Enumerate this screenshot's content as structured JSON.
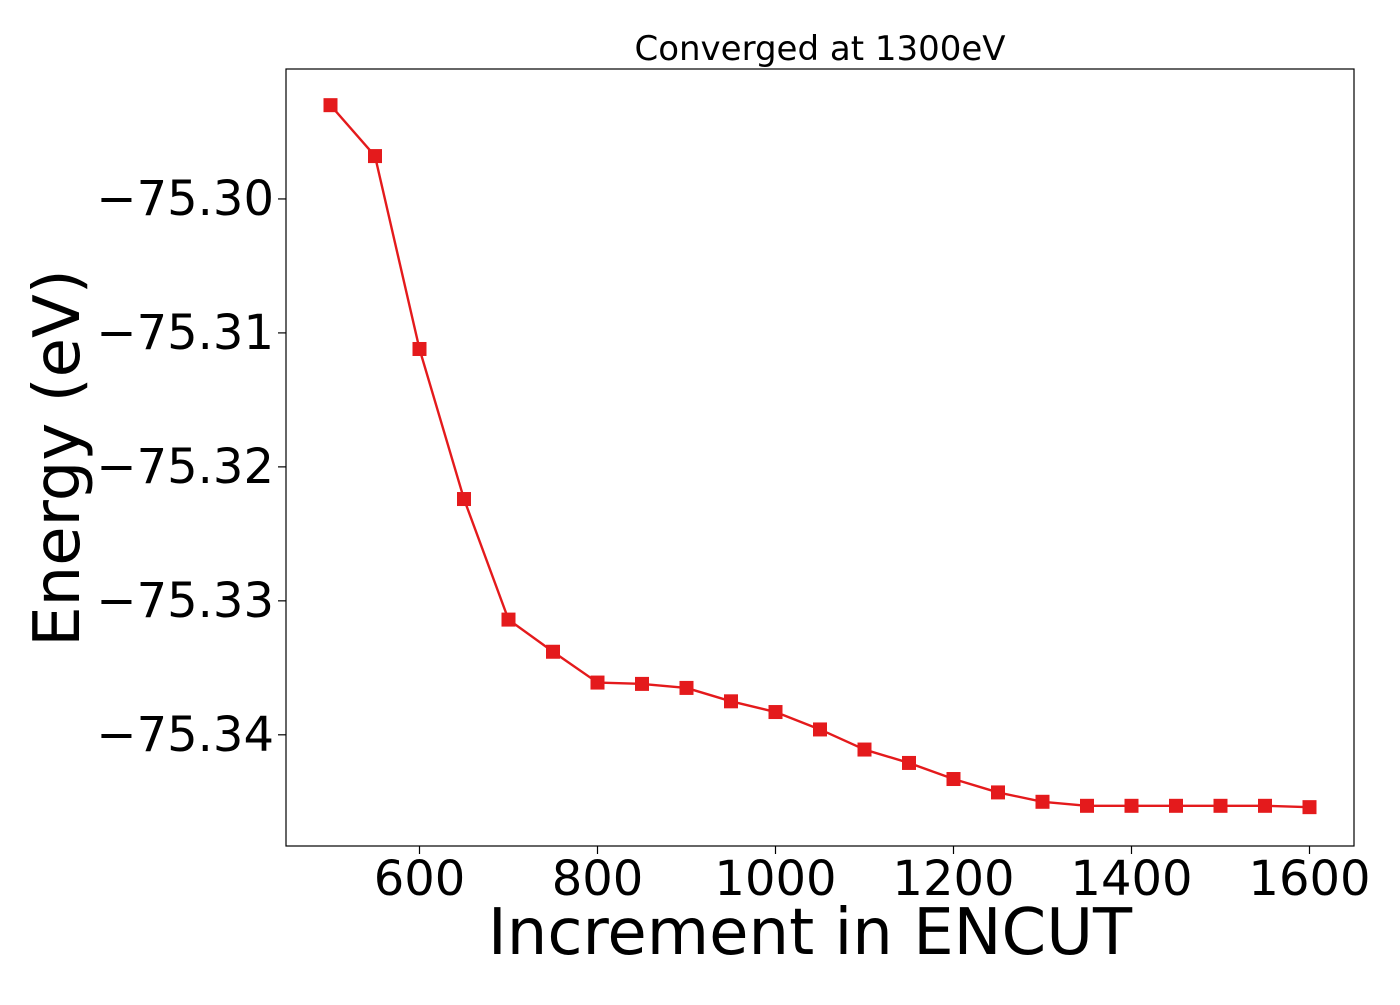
{
  "chart_data": {
    "type": "line",
    "title": "Converged at 1300eV",
    "xlabel": "Increment in ENCUT",
    "ylabel": "Energy (eV)",
    "xlim": [
      450,
      1650
    ],
    "ylim": [
      -75.3483,
      -75.2903
    ],
    "x_ticks": [
      600,
      800,
      1000,
      1200,
      1400,
      1600
    ],
    "y_ticks": [
      -75.3,
      -75.31,
      -75.32,
      -75.33,
      -75.34
    ],
    "x_tick_labels": [
      "600",
      "800",
      "1000",
      "1200",
      "1400",
      "1600"
    ],
    "y_tick_labels": [
      "−75.30",
      "−75.31",
      "−75.32",
      "−75.33",
      "−75.34"
    ],
    "grid": false,
    "marker": "square",
    "color": "#e41a1c",
    "series": [
      {
        "x": [
          500,
          550,
          600,
          650,
          700,
          750,
          800,
          850,
          900,
          950,
          1000,
          1050,
          1100,
          1150,
          1200,
          1250,
          1300,
          1350,
          1400,
          1450,
          1500,
          1550,
          1600
        ],
        "y": [
          -75.293,
          -75.2968,
          -75.3112,
          -75.3224,
          -75.3314,
          -75.3338,
          -75.3361,
          -75.3362,
          -75.3365,
          -75.3375,
          -75.3383,
          -75.3396,
          -75.3411,
          -75.3421,
          -75.3433,
          -75.3443,
          -75.345,
          -75.3453,
          -75.3453,
          -75.3453,
          -75.3453,
          -75.3453,
          -75.3454
        ]
      }
    ]
  }
}
